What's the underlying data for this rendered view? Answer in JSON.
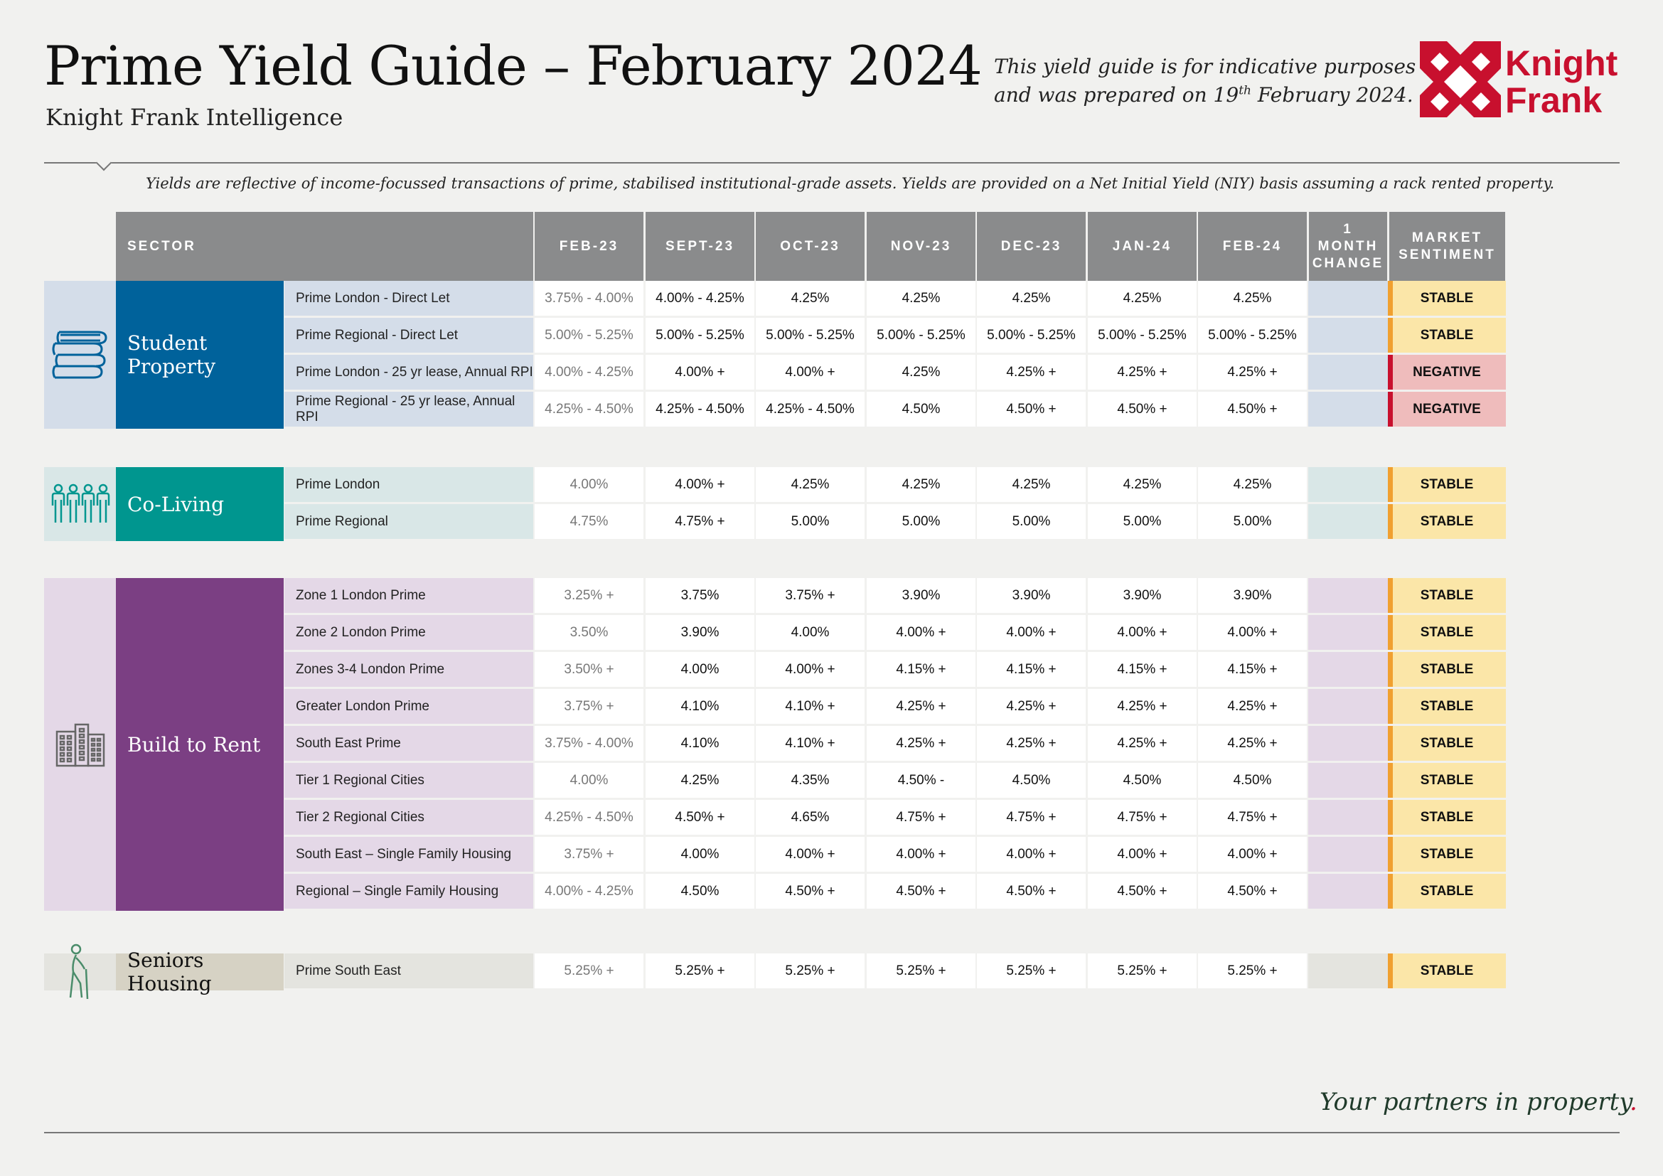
{
  "header": {
    "title": "Prime Yield Guide – February 2024",
    "subtitle": "Knight Frank Intelligence",
    "disclaimer_line1": "This yield guide is for indicative purposes only",
    "disclaimer_line2_pre": "and was prepared on 19",
    "disclaimer_sup": "th",
    "disclaimer_line2_post": " February 2024.",
    "logo_text_1": "Knight",
    "logo_text_2": "Frank"
  },
  "note": "Yields are reflective of income-focussed transactions of prime, stabilised institutional-grade assets. Yields are provided on a Net Initial Yield (NIY) basis assuming a rack rented property.",
  "table": {
    "columns": {
      "sector": "SECTOR",
      "feb23": "FEB-23",
      "sept23": "SEPT-23",
      "oct23": "OCT-23",
      "nov23": "NOV-23",
      "dec23": "DEC-23",
      "jan24": "JAN-24",
      "feb24": "FEB-24",
      "change_1": "1",
      "change_2": "MONTH",
      "change_3": "CHANGE",
      "sentiment_1": "MARKET",
      "sentiment_2": "SENTIMENT"
    },
    "sectors": [
      {
        "name": "Student Property",
        "icon": "books-icon",
        "color": "#00629b",
        "band": "#d4dde9",
        "rows": [
          {
            "label": "Prime London - Direct Let",
            "values": [
              "3.75% - 4.00%",
              "4.00% - 4.25%",
              "4.25%",
              "4.25%",
              "4.25%",
              "4.25%",
              "4.25%"
            ],
            "sentiment": "STABLE"
          },
          {
            "label": "Prime Regional - Direct Let",
            "values": [
              "5.00% - 5.25%",
              "5.00% - 5.25%",
              "5.00% - 5.25%",
              "5.00% - 5.25%",
              "5.00% - 5.25%",
              "5.00% - 5.25%",
              "5.00% - 5.25%"
            ],
            "sentiment": "STABLE"
          },
          {
            "label": "Prime London - 25 yr lease, Annual RPI",
            "values": [
              "4.00% - 4.25%",
              "4.00% +",
              "4.00% +",
              "4.25%",
              "4.25% +",
              "4.25% +",
              "4.25% +"
            ],
            "sentiment": "NEGATIVE"
          },
          {
            "label": "Prime Regional - 25 yr lease, Annual RPI",
            "values": [
              "4.25% - 4.50%",
              "4.25% - 4.50%",
              "4.25% - 4.50%",
              "4.50%",
              "4.50% +",
              "4.50% +",
              "4.50% +"
            ],
            "sentiment": "NEGATIVE"
          }
        ]
      },
      {
        "name": "Co-Living",
        "icon": "people-icon",
        "color": "#00968f",
        "band": "#d9e7e7",
        "rows": [
          {
            "label": "Prime London",
            "values": [
              "4.00%",
              "4.00% +",
              "4.25%",
              "4.25%",
              "4.25%",
              "4.25%",
              "4.25%"
            ],
            "sentiment": "STABLE"
          },
          {
            "label": "Prime Regional",
            "values": [
              "4.75%",
              "4.75% +",
              "5.00%",
              "5.00%",
              "5.00%",
              "5.00%",
              "5.00%"
            ],
            "sentiment": "STABLE"
          }
        ]
      },
      {
        "name": "Build to Rent",
        "icon": "buildings-icon",
        "color": "#7b3f83",
        "band": "#e4d8e7",
        "rows": [
          {
            "label": "Zone 1 London Prime",
            "values": [
              "3.25% +",
              "3.75%",
              "3.75% +",
              "3.90%",
              "3.90%",
              "3.90%",
              "3.90%"
            ],
            "sentiment": "STABLE"
          },
          {
            "label": "Zone 2 London Prime",
            "values": [
              "3.50%",
              "3.90%",
              "4.00%",
              "4.00% +",
              "4.00% +",
              "4.00% +",
              "4.00% +"
            ],
            "sentiment": "STABLE"
          },
          {
            "label": "Zones 3-4 London Prime",
            "values": [
              "3.50% +",
              "4.00%",
              "4.00% +",
              "4.15% +",
              "4.15% +",
              "4.15% +",
              "4.15% +"
            ],
            "sentiment": "STABLE"
          },
          {
            "label": "Greater London Prime",
            "values": [
              "3.75% +",
              "4.10%",
              "4.10% +",
              "4.25% +",
              "4.25% +",
              "4.25% +",
              "4.25% +"
            ],
            "sentiment": "STABLE"
          },
          {
            "label": "South East Prime",
            "values": [
              "3.75% - 4.00%",
              "4.10%",
              "4.10% +",
              "4.25% +",
              "4.25% +",
              "4.25% +",
              "4.25% +"
            ],
            "sentiment": "STABLE"
          },
          {
            "label": "Tier 1 Regional Cities",
            "values": [
              "4.00%",
              "4.25%",
              "4.35%",
              "4.50% -",
              "4.50%",
              "4.50%",
              "4.50%"
            ],
            "sentiment": "STABLE"
          },
          {
            "label": "Tier 2 Regional Cities",
            "values": [
              "4.25% - 4.50%",
              "4.50% +",
              "4.65%",
              "4.75% +",
              "4.75% +",
              "4.75% +",
              "4.75% +"
            ],
            "sentiment": "STABLE"
          },
          {
            "label": "South East – Single Family Housing",
            "values": [
              "3.75% +",
              "4.00%",
              "4.00% +",
              "4.00% +",
              "4.00% +",
              "4.00% +",
              "4.00% +"
            ],
            "sentiment": "STABLE"
          },
          {
            "label": "Regional – Single Family Housing",
            "values": [
              "4.00% - 4.25%",
              "4.50%",
              "4.50% +",
              "4.50% +",
              "4.50% +",
              "4.50% +",
              "4.50% +"
            ],
            "sentiment": "STABLE"
          }
        ]
      },
      {
        "name": "Seniors Housing",
        "icon": "elderly-person-icon",
        "color": "#d6d2c4",
        "band": "#e4e4df",
        "rows": [
          {
            "label": "Prime South East",
            "values": [
              "5.25% +",
              "5.25% +",
              "5.25% +",
              "5.25% +",
              "5.25% +",
              "5.25% +",
              "5.25% +"
            ],
            "sentiment": "STABLE"
          }
        ]
      }
    ],
    "sentiment_colors": {
      "STABLE": "#fbe6a8",
      "NEGATIVE": "#efbcbc"
    },
    "sentiment_bar_colors": {
      "STABLE": "#f0a030",
      "NEGATIVE": "#c8102e"
    }
  },
  "footer": {
    "slogan": "Your partners in property",
    "slogan_dot": "."
  },
  "colors": {
    "brand_red": "#c8102e",
    "header_grey": "#8a8b8c"
  }
}
